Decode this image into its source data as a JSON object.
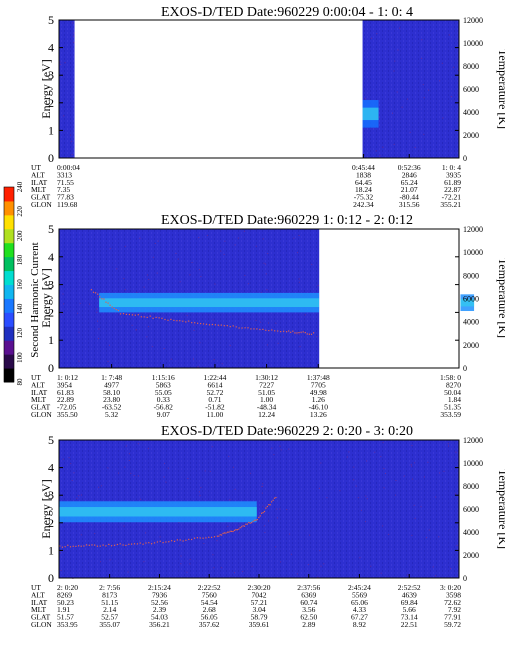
{
  "chart_data": [
    {
      "type": "heatmap",
      "title": "EXOS-D/TED   Date:960229  0:00:04 - 1: 0: 4",
      "ylabel": "Energy [eV]",
      "y2label": "Temperature [K]",
      "ylim": [
        0,
        5
      ],
      "y2lim": [
        0,
        12000
      ],
      "yticks": [
        "0",
        "1",
        "2",
        "3",
        "4",
        "5"
      ],
      "y2ticks": [
        "0",
        "2000",
        "4000",
        "6000",
        "8000",
        "10000",
        "12000"
      ],
      "grid": false,
      "data_gaps_hours": [
        [
          0.04,
          0.76
        ]
      ],
      "bands": [
        {
          "t_start": 0.76,
          "t_end": 0.8,
          "energy_center_eV": 1.6,
          "energy_halfwidth_eV": 0.5,
          "color": "#1670ff"
        }
      ],
      "temperature_trace": [],
      "ephemeris": {
        "labels": [
          "UT",
          "ALT",
          "ILAT",
          "MLT",
          "GLAT",
          "GLON"
        ],
        "columns": [
          {
            "t": 0.0011,
            "values": [
              "0:00:04",
              "3313",
              "71.55",
              "7.35",
              "77.83",
              "119.68"
            ]
          },
          {
            "t": 0.7622,
            "values": [
              "0:45:44",
              "1838",
              "64.45",
              "18.24",
              "-75.32",
              "242.34"
            ]
          },
          {
            "t": 0.8767,
            "values": [
              "0:52:36",
              "2846",
              "65.24",
              "21.07",
              "-80.44",
              "315.56"
            ]
          },
          {
            "t": 1.0011,
            "values": [
              "1: 0: 4",
              "3935",
              "61.89",
              "22.87",
              "-72.21",
              "355.21"
            ]
          }
        ]
      }
    },
    {
      "type": "heatmap",
      "title": "EXOS-D/TED   Date:960229  1: 0:12 - 2: 0:12",
      "ylabel": "Energy [eV]",
      "y2label": "Temperature [K]",
      "ylim": [
        0,
        5
      ],
      "y2lim": [
        0,
        12000
      ],
      "yticks": [
        "0",
        "1",
        "2",
        "3",
        "4",
        "5"
      ],
      "y2ticks": [
        "0",
        "2000",
        "4000",
        "6000",
        "8000",
        "10000",
        "12000"
      ],
      "grid": false,
      "data_gaps_hours": [
        [
          1.63,
          1.97
        ]
      ],
      "bands": [
        {
          "t_start": 1.1,
          "t_end": 1.63,
          "energy_center_eV": 2.35,
          "energy_halfwidth_eV": 0.35,
          "color": "#1e90ff"
        },
        {
          "t_start": 1.97,
          "t_end": 2.003,
          "energy_center_eV": 2.35,
          "energy_halfwidth_eV": 0.3,
          "color": "#1e90ff"
        }
      ],
      "temperature_trace": [
        [
          1.08,
          6800
        ],
        [
          1.15,
          4800
        ],
        [
          1.25,
          4300
        ],
        [
          1.35,
          3900
        ],
        [
          1.45,
          3500
        ],
        [
          1.55,
          3200
        ],
        [
          1.62,
          3000
        ]
      ],
      "ephemeris": {
        "labels": [
          "UT",
          "ALT",
          "ILAT",
          "MLT",
          "GLAT",
          "GLON"
        ],
        "columns": [
          {
            "t": 1.0033,
            "values": [
              "1: 0:12",
              "3954",
              "61.83",
              "22.89",
              "-72.05",
              "355.50"
            ]
          },
          {
            "t": 1.13,
            "values": [
              "1: 7:48",
              "4977",
              "58.10",
              "23.80",
              "-63.52",
              "5.32"
            ]
          },
          {
            "t": 1.2544,
            "values": [
              "1:15:16",
              "5863",
              "55.05",
              "0.33",
              "-56.82",
              "9.07"
            ]
          },
          {
            "t": 1.3789,
            "values": [
              "1:22:44",
              "6614",
              "52.72",
              "0.71",
              "-51.82",
              "11.00"
            ]
          },
          {
            "t": 1.5033,
            "values": [
              "1:30:12",
              "7227",
              "51.05",
              "1.00",
              "-48.34",
              "12.24"
            ]
          },
          {
            "t": 1.6278,
            "values": [
              "1:37:48",
              "7705",
              "49.98",
              "1.26",
              "-46.10",
              "13.26"
            ]
          },
          {
            "t": 1.9667,
            "values": [
              "1:58: 0",
              "8270",
              "50.04",
              "1.84",
              "51.35",
              "353.59"
            ]
          }
        ]
      }
    },
    {
      "type": "heatmap",
      "title": "EXOS-D/TED   Date:960229  2: 0:20 - 3: 0:20",
      "ylabel": "Energy [eV]",
      "y2label": "Temperature [K]",
      "ylim": [
        0,
        5
      ],
      "y2lim": [
        0,
        12000
      ],
      "yticks": [
        "0",
        "1",
        "2",
        "3",
        "4",
        "5"
      ],
      "y2ticks": [
        "0",
        "2000",
        "4000",
        "6000",
        "8000",
        "10000",
        "12000"
      ],
      "grid": false,
      "data_gaps_hours": [],
      "bands": [
        {
          "t_start": 2.006,
          "t_end": 2.5,
          "energy_center_eV": 2.4,
          "energy_halfwidth_eV": 0.38,
          "color": "#1e90ff"
        }
      ],
      "temperature_trace": [
        [
          2.006,
          2800
        ],
        [
          2.1,
          2900
        ],
        [
          2.2,
          3000
        ],
        [
          2.3,
          3300
        ],
        [
          2.4,
          3700
        ],
        [
          2.45,
          4300
        ],
        [
          2.5,
          5200
        ],
        [
          2.55,
          7200
        ]
      ],
      "ephemeris": {
        "labels": [
          "UT",
          "ALT",
          "ILAT",
          "MLT",
          "GLAT",
          "GLON"
        ],
        "columns": [
          {
            "t": 2.0056,
            "values": [
              "2: 0:20",
              "8269",
              "50.23",
              "1.91",
              "51.57",
              "353.95"
            ]
          },
          {
            "t": 2.1322,
            "values": [
              "2: 7:56",
              "8173",
              "51.15",
              "2.14",
              "52.57",
              "355.07"
            ]
          },
          {
            "t": 2.2567,
            "values": [
              "2:15:24",
              "7936",
              "52.56",
              "2.39",
              "54.03",
              "356.21"
            ]
          },
          {
            "t": 2.3811,
            "values": [
              "2:22:52",
              "7560",
              "54.54",
              "2.68",
              "56.05",
              "357.62"
            ]
          },
          {
            "t": 2.5056,
            "values": [
              "2:30:20",
              "7042",
              "57.21",
              "3.04",
              "58.79",
              "359.61"
            ]
          },
          {
            "t": 2.63,
            "values": [
              "2:37:56",
              "6369",
              "60.74",
              "3.56",
              "62.50",
              "2.89"
            ]
          },
          {
            "t": 2.7567,
            "values": [
              "2:45:24",
              "5569",
              "65.06",
              "4.33",
              "67.27",
              "8.92"
            ]
          },
          {
            "t": 2.8811,
            "values": [
              "2:52:52",
              "4639",
              "69.84",
              "5.66",
              "73.14",
              "22.51"
            ]
          },
          {
            "t": 3.0056,
            "values": [
              "3: 0:20",
              "3598",
              "72.62",
              "7.92",
              "77.91",
              "59.72"
            ]
          }
        ]
      }
    }
  ],
  "colorbar": {
    "label": "Second Harmonic Current",
    "ticks": [
      "80",
      "100",
      "120",
      "140",
      "160",
      "180",
      "200",
      "220",
      "240"
    ],
    "colors": [
      "#000000",
      "#2a0a4a",
      "#5a1090",
      "#2030c0",
      "#2b4dff",
      "#1a78ff",
      "#10b6f0",
      "#00ddd0",
      "#00c060",
      "#20e020",
      "#b0e020",
      "#ffe000",
      "#ff9000",
      "#ff2000"
    ]
  },
  "colors": {
    "background_field": "#2d2fd0",
    "noise_speckle": "#7a2a8a",
    "trace": "#e06050"
  }
}
